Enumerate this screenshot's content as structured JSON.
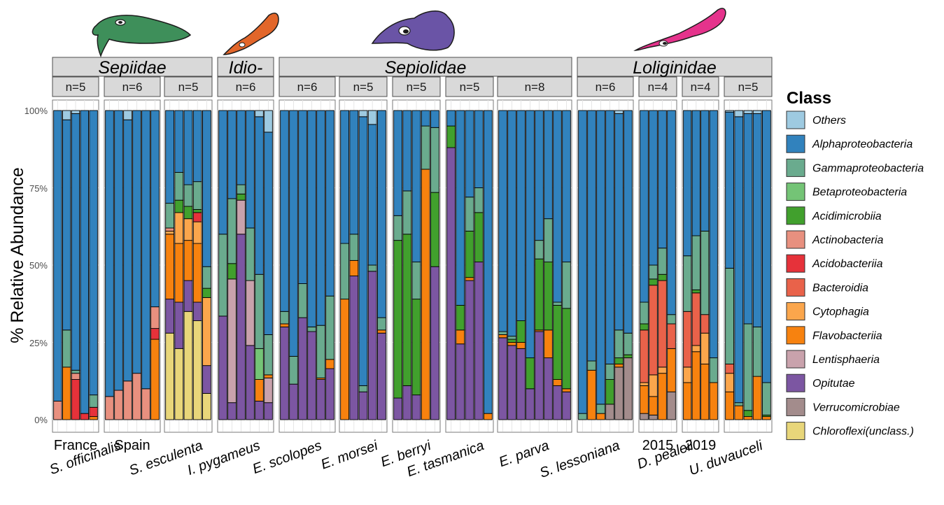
{
  "chart_data": {
    "type": "bar",
    "stacked": true,
    "ylabel": "% Relative Abundance",
    "ylim": [
      0,
      100
    ],
    "yticks": [
      "0%",
      "25%",
      "50%",
      "75%",
      "100%"
    ],
    "grid": true,
    "legend_position": "right",
    "legend_title": "Class",
    "class_order": [
      "Chloroflexi(unclass.)",
      "Verrucomicrobiae",
      "Opitutae",
      "Lentisphaeria",
      "Flavobacteriia",
      "Cytophagia",
      "Bacteroidia",
      "Acidobacteriia",
      "Actinobacteria",
      "Acidimicrobiia",
      "Betaproteobacteria",
      "Gammaproteobacteria",
      "Alphaproteobacteria",
      "Others"
    ],
    "legend": [
      {
        "label": "Others",
        "color": "#9ecae1"
      },
      {
        "label": "Alphaproteobacteria",
        "color": "#3182bd"
      },
      {
        "label": "Gammaproteobacteria",
        "color": "#6aab8e"
      },
      {
        "label": "Betaproteobacteria",
        "color": "#74c476"
      },
      {
        "label": "Acidimicrobiia",
        "color": "#41a02d"
      },
      {
        "label": "Actinobacteria",
        "color": "#e8907f"
      },
      {
        "label": "Acidobacteriia",
        "color": "#e6323a"
      },
      {
        "label": "Bacteroidia",
        "color": "#e9624a"
      },
      {
        "label": "Cytophagia",
        "color": "#fba64c"
      },
      {
        "label": "Flavobacteriia",
        "color": "#f7820f"
      },
      {
        "label": "Lentisphaeria",
        "color": "#c9a2ac"
      },
      {
        "label": "Opitutae",
        "color": "#7c56a2"
      },
      {
        "label": "Verrucomicrobiae",
        "color": "#a38c8c"
      },
      {
        "label": "Chloroflexi(unclass.)",
        "color": "#e8d67a"
      }
    ],
    "families": [
      {
        "name": "Sepiidae",
        "panels": [
          0,
          2
        ]
      },
      {
        "name": "Idio-",
        "panels": [
          3,
          3
        ]
      },
      {
        "name": "Sepiolidae",
        "panels": [
          4,
          8
        ]
      },
      {
        "name": "Loliginidae",
        "panels": [
          9,
          12
        ]
      }
    ],
    "species": [
      {
        "label": "S. officinalis",
        "panels": [
          0,
          1
        ]
      },
      {
        "label": "S. esculenta",
        "panels": [
          2,
          2
        ]
      },
      {
        "label": "I. pygameus",
        "panels": [
          3,
          3
        ]
      },
      {
        "label": "E. scolopes",
        "panels": [
          4,
          4
        ]
      },
      {
        "label": "E. morsei",
        "panels": [
          5,
          5
        ]
      },
      {
        "label": "E. berryi",
        "panels": [
          6,
          6
        ]
      },
      {
        "label": "E. tasmanica",
        "panels": [
          7,
          7
        ]
      },
      {
        "label": "E. parva",
        "panels": [
          8,
          8
        ]
      },
      {
        "label": "S. lessoniana",
        "panels": [
          9,
          9
        ]
      },
      {
        "label": "D. pealeii",
        "panels": [
          10,
          11
        ]
      },
      {
        "label": "U. duvauceli",
        "panels": [
          12,
          12
        ]
      }
    ],
    "panels": [
      {
        "n": "n=5",
        "sub": "France",
        "bars": [
          {
            "Actinobacteria": 6,
            "Others": 0,
            "Alphaproteobacteria": 94
          },
          {
            "Flavobacteriia": 17,
            "Gammaproteobacteria": 12,
            "Alphaproteobacteria": 68,
            "Others": 3
          },
          {
            "Acidobacteriia": 13,
            "Actinobacteria": 2,
            "Gammaproteobacteria": 1,
            "Alphaproteobacteria": 83,
            "Others": 1
          },
          {
            "Acidobacteriia": 2,
            "Alphaproteobacteria": 98
          },
          {
            "Flavobacteriia": 1,
            "Acidobacteriia": 3,
            "Gammaproteobacteria": 4,
            "Alphaproteobacteria": 92
          }
        ]
      },
      {
        "n": "n=6",
        "sub": "Spain",
        "bars": [
          {
            "Actinobacteria": 7.5,
            "Alphaproteobacteria": 92.5
          },
          {
            "Actinobacteria": 9.5,
            "Alphaproteobacteria": 90.5
          },
          {
            "Actinobacteria": 12.5,
            "Alphaproteobacteria": 84.5,
            "Others": 3
          },
          {
            "Actinobacteria": 15,
            "Alphaproteobacteria": 85
          },
          {
            "Actinobacteria": 10,
            "Alphaproteobacteria": 90
          },
          {
            "Flavobacteriia": 26,
            "Acidobacteriia": 3.5,
            "Actinobacteria": 7,
            "Alphaproteobacteria": 63.5
          }
        ]
      },
      {
        "n": "n=5",
        "sub": "",
        "bars": [
          {
            "Chloroflexi(unclass.)": 28,
            "Opitutae": 11,
            "Flavobacteriia": 21,
            "Cytophagia": 1,
            "Actinobacteria": 1,
            "Acidimicrobiia": 0,
            "Gammaproteobacteria": 8,
            "Alphaproteobacteria": 30
          },
          {
            "Chloroflexi(unclass.)": 23,
            "Opitutae": 15,
            "Flavobacteriia": 19,
            "Cytophagia": 10,
            "Acidimicrobiia": 4,
            "Gammaproteobacteria": 9,
            "Alphaproteobacteria": 20
          },
          {
            "Chloroflexi(unclass.)": 35,
            "Opitutae": 10,
            "Flavobacteriia": 13,
            "Cytophagia": 7,
            "Acidimicrobiia": 4,
            "Gammaproteobacteria": 7,
            "Alphaproteobacteria": 24
          },
          {
            "Chloroflexi(unclass.)": 32,
            "Opitutae": 6,
            "Flavobacteriia": 19,
            "Cytophagia": 7,
            "Acidobacteriia": 3,
            "Acidimicrobiia": 1,
            "Gammaproteobacteria": 9,
            "Alphaproteobacteria": 23
          },
          {
            "Chloroflexi(unclass.)": 8.5,
            "Opitutae": 9,
            "Cytophagia": 22,
            "Acidimicrobiia": 3,
            "Gammaproteobacteria": 7,
            "Alphaproteobacteria": 50.5
          }
        ]
      },
      {
        "n": "n=6",
        "sub": "",
        "bars": [
          {
            "Opitutae": 33.5,
            "Gammaproteobacteria": 26.5,
            "Alphaproteobacteria": 40
          },
          {
            "Opitutae": 5.5,
            "Lentisphaeria": 40,
            "Acidimicrobiia": 5,
            "Gammaproteobacteria": 21,
            "Alphaproteobacteria": 28.5
          },
          {
            "Opitutae": 60,
            "Lentisphaeria": 11,
            "Acidimicrobiia": 2,
            "Gammaproteobacteria": 3,
            "Alphaproteobacteria": 24
          },
          {
            "Opitutae": 24,
            "Lentisphaeria": 21,
            "Gammaproteobacteria": 17,
            "Alphaproteobacteria": 38
          },
          {
            "Opitutae": 6,
            "Flavobacteriia": 7,
            "Betaproteobacteria": 10,
            "Gammaproteobacteria": 24,
            "Alphaproteobacteria": 51,
            "Others": 2
          },
          {
            "Opitutae": 5.5,
            "Lentisphaeria": 8,
            "Flavobacteriia": 1,
            "Gammaproteobacteria": 13,
            "Alphaproteobacteria": 65.5,
            "Others": 7
          }
        ]
      },
      {
        "n": "n=6",
        "sub": "",
        "bars": [
          {
            "Opitutae": 30,
            "Flavobacteriia": 1,
            "Gammaproteobacteria": 4,
            "Alphaproteobacteria": 65
          },
          {
            "Opitutae": 11.5,
            "Gammaproteobacteria": 9,
            "Alphaproteobacteria": 79.5
          },
          {
            "Opitutae": 33,
            "Gammaproteobacteria": 11,
            "Alphaproteobacteria": 56
          },
          {
            "Opitutae": 28.5,
            "Gammaproteobacteria": 1.5,
            "Alphaproteobacteria": 70
          },
          {
            "Opitutae": 13,
            "Flavobacteriia": 0.5,
            "Gammaproteobacteria": 17,
            "Alphaproteobacteria": 69.5
          },
          {
            "Opitutae": 16.5,
            "Flavobacteriia": 3,
            "Gammaproteobacteria": 20.5,
            "Alphaproteobacteria": 60
          }
        ]
      },
      {
        "n": "n=5",
        "sub": "",
        "bars": [
          {
            "Flavobacteriia": 39,
            "Gammaproteobacteria": 18,
            "Alphaproteobacteria": 43
          },
          {
            "Opitutae": 46.5,
            "Flavobacteriia": 5,
            "Gammaproteobacteria": 8.5,
            "Alphaproteobacteria": 40
          },
          {
            "Opitutae": 9,
            "Gammaproteobacteria": 2,
            "Alphaproteobacteria": 87,
            "Others": 2
          },
          {
            "Opitutae": 48,
            "Gammaproteobacteria": 2,
            "Alphaproteobacteria": 45.5,
            "Others": 4.5
          },
          {
            "Opitutae": 28,
            "Flavobacteriia": 1,
            "Gammaproteobacteria": 4,
            "Alphaproteobacteria": 67
          }
        ]
      },
      {
        "n": "n=5",
        "sub": "",
        "bars": [
          {
            "Opitutae": 7,
            "Acidimicrobiia": 51,
            "Gammaproteobacteria": 8,
            "Alphaproteobacteria": 34
          },
          {
            "Opitutae": 11,
            "Acidimicrobiia": 49,
            "Gammaproteobacteria": 14,
            "Alphaproteobacteria": 26
          },
          {
            "Opitutae": 8,
            "Acidimicrobiia": 31,
            "Gammaproteobacteria": 12,
            "Alphaproteobacteria": 49
          },
          {
            "Flavobacteriia": 81,
            "Gammaproteobacteria": 14,
            "Alphaproteobacteria": 5
          },
          {
            "Opitutae": 49.5,
            "Acidimicrobiia": 24,
            "Gammaproteobacteria": 21,
            "Alphaproteobacteria": 5.5
          }
        ]
      },
      {
        "n": "n=5",
        "sub": "",
        "bars": [
          {
            "Opitutae": 88,
            "Acidimicrobiia": 7,
            "Alphaproteobacteria": 5
          },
          {
            "Opitutae": 24.5,
            "Flavobacteriia": 4.5,
            "Acidimicrobiia": 8,
            "Alphaproteobacteria": 63
          },
          {
            "Opitutae": 45,
            "Flavobacteriia": 1,
            "Acidimicrobiia": 15,
            "Gammaproteobacteria": 11,
            "Alphaproteobacteria": 28
          },
          {
            "Opitutae": 51,
            "Acidimicrobiia": 16,
            "Gammaproteobacteria": 8,
            "Alphaproteobacteria": 25
          },
          {
            "Flavobacteriia": 2,
            "Alphaproteobacteria": 98
          }
        ]
      },
      {
        "n": "n=8",
        "sub": "",
        "bars": [
          {
            "Opitutae": 26.5,
            "Flavobacteriia": 1,
            "Gammaproteobacteria": 1,
            "Alphaproteobacteria": 71.5
          },
          {
            "Opitutae": 24,
            "Flavobacteriia": 1,
            "Acidimicrobiia": 1,
            "Gammaproteobacteria": 1,
            "Alphaproteobacteria": 73
          },
          {
            "Opitutae": 23,
            "Flavobacteriia": 2,
            "Acidimicrobiia": 7,
            "Alphaproteobacteria": 68
          },
          {
            "Opitutae": 10,
            "Acidimicrobiia": 10,
            "Alphaproteobacteria": 80
          },
          {
            "Opitutae": 28.5,
            "Flavobacteriia": 0.5,
            "Acidimicrobiia": 23,
            "Gammaproteobacteria": 6,
            "Alphaproteobacteria": 42
          },
          {
            "Opitutae": 20,
            "Flavobacteriia": 9,
            "Acidimicrobiia": 22,
            "Gammaproteobacteria": 14,
            "Alphaproteobacteria": 35
          },
          {
            "Opitutae": 11,
            "Flavobacteriia": 2,
            "Acidimicrobiia": 24,
            "Gammaproteobacteria": 1,
            "Alphaproteobacteria": 62
          },
          {
            "Opitutae": 9,
            "Flavobacteriia": 1,
            "Acidimicrobiia": 26,
            "Gammaproteobacteria": 15,
            "Alphaproteobacteria": 49
          }
        ]
      },
      {
        "n": "n=6",
        "sub": "",
        "bars": [
          {
            "Gammaproteobacteria": 2,
            "Alphaproteobacteria": 98
          },
          {
            "Flavobacteriia": 16,
            "Gammaproteobacteria": 3,
            "Alphaproteobacteria": 81
          },
          {
            "Flavobacteriia": 2,
            "Gammaproteobacteria": 3,
            "Alphaproteobacteria": 95
          },
          {
            "Verrucomicrobiae": 5,
            "Acidimicrobiia": 8,
            "Gammaproteobacteria": 5,
            "Alphaproteobacteria": 82
          },
          {
            "Verrucomicrobiae": 17,
            "Flavobacteriia": 1,
            "Acidimicrobiia": 2,
            "Gammaproteobacteria": 9,
            "Alphaproteobacteria": 70,
            "Others": 1
          },
          {
            "Verrucomicrobiae": 20,
            "Acidimicrobiia": 1,
            "Gammaproteobacteria": 7,
            "Alphaproteobacteria": 72
          }
        ]
      },
      {
        "n": "n=4",
        "sub": "2015",
        "bars": [
          {
            "Verrucomicrobiae": 2,
            "Flavobacteriia": 9,
            "Cytophagia": 1,
            "Bacteroidia": 17,
            "Acidimicrobiia": 2,
            "Gammaproteobacteria": 7,
            "Alphaproteobacteria": 62
          },
          {
            "Verrucomicrobiae": 1.5,
            "Flavobacteriia": 6,
            "Cytophagia": 7,
            "Bacteroidia": 29,
            "Acidimicrobiia": 2,
            "Gammaproteobacteria": 4.5,
            "Alphaproteobacteria": 50
          },
          {
            "Flavobacteriia": 15,
            "Cytophagia": 2,
            "Bacteroidia": 28,
            "Acidimicrobiia": 2,
            "Gammaproteobacteria": 8.5,
            "Alphaproteobacteria": 44.5
          },
          {
            "Verrucomicrobiae": 9,
            "Flavobacteriia": 14,
            "Bacteroidia": 8,
            "Gammaproteobacteria": 3,
            "Alphaproteobacteria": 66
          }
        ]
      },
      {
        "n": "n=4",
        "sub": "2019",
        "bars": [
          {
            "Flavobacteriia": 12,
            "Cytophagia": 5,
            "Bacteroidia": 18,
            "Gammaproteobacteria": 18,
            "Alphaproteobacteria": 47
          },
          {
            "Flavobacteriia": 22,
            "Cytophagia": 2,
            "Bacteroidia": 17,
            "Acidimicrobiia": 1,
            "Gammaproteobacteria": 17.5,
            "Alphaproteobacteria": 40.5
          },
          {
            "Flavobacteriia": 18,
            "Cytophagia": 10,
            "Bacteroidia": 6,
            "Gammaproteobacteria": 27,
            "Alphaproteobacteria": 39
          },
          {
            "Flavobacteriia": 12,
            "Gammaproteobacteria": 8,
            "Alphaproteobacteria": 80
          }
        ]
      },
      {
        "n": "n=5",
        "sub": "",
        "bars": [
          {
            "Flavobacteriia": 9,
            "Cytophagia": 6,
            "Bacteroidia": 3,
            "Gammaproteobacteria": 31,
            "Alphaproteobacteria": 50.5,
            "Others": 0.5
          },
          {
            "Flavobacteriia": 4.5,
            "Gammaproteobacteria": 1,
            "Alphaproteobacteria": 92.5,
            "Others": 2
          },
          {
            "Flavobacteriia": 1,
            "Acidimicrobiia": 2,
            "Gammaproteobacteria": 28,
            "Alphaproteobacteria": 68,
            "Others": 1
          },
          {
            "Flavobacteriia": 14,
            "Gammaproteobacteria": 16,
            "Alphaproteobacteria": 69,
            "Others": 1
          },
          {
            "Flavobacteriia": 1,
            "Acidimicrobiia": 0.5,
            "Gammaproteobacteria": 10.5,
            "Alphaproteobacteria": 88
          }
        ]
      }
    ]
  }
}
